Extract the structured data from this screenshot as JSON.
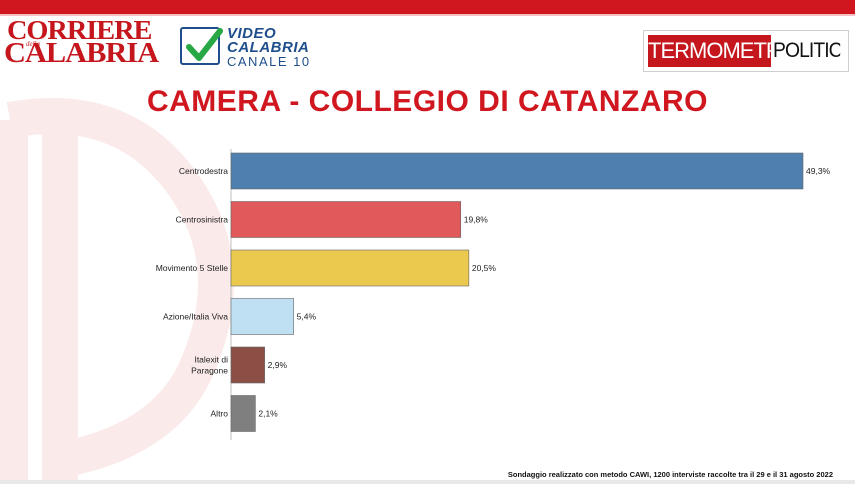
{
  "header": {
    "logo_corriere_line1": "CORRIERE",
    "logo_corriere_della": "della",
    "logo_corriere_line2": "CALABRIA",
    "logo_video_line1": "VIDEO",
    "logo_video_line2": "CALABRIA",
    "logo_video_line3": "CANALE 10",
    "logo_tp_part1": "TERMOMETRO",
    "logo_tp_part2": "POLITICO"
  },
  "colors": {
    "brand_red": "#d0161e"
  },
  "chart_data": {
    "type": "bar",
    "orientation": "horizontal",
    "title": "CAMERA - COLLEGIO DI CATANZARO",
    "categories": [
      [
        "Centrodestra"
      ],
      [
        "Centrosinistra"
      ],
      [
        "Movimento 5 Stelle"
      ],
      [
        "Azione/Italia Viva"
      ],
      [
        "Italexit di",
        "Paragone"
      ],
      [
        "Altro"
      ]
    ],
    "values": [
      49.3,
      19.8,
      20.5,
      5.4,
      2.9,
      2.1
    ],
    "value_labels": [
      "49,3%",
      "19,8%",
      "20,5%",
      "5,4%",
      "2,9%",
      "2,1%"
    ],
    "colors": [
      "#4e7fae",
      "#e05a5b",
      "#ebc84e",
      "#bfe0f2",
      "#8b4f46",
      "#7f7f7f"
    ],
    "xlim": [
      0,
      49.3
    ],
    "grid": false,
    "legend": "none"
  },
  "footnote": "Sondaggio realizzato con metodo CAWI, 1200 interviste raccolte tra il 29 e il 31 agosto 2022"
}
